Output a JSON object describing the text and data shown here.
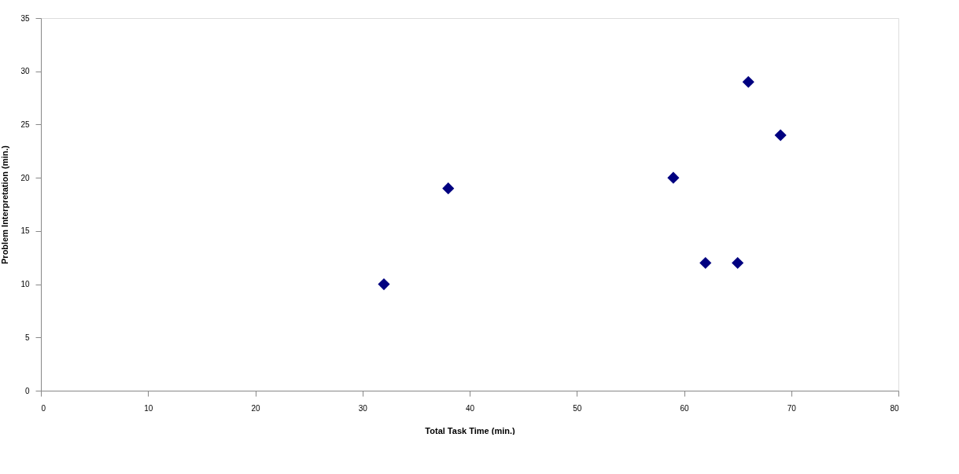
{
  "chart_data": {
    "type": "scatter",
    "xlabel": "Total Task Time (min.)",
    "ylabel": "Problem Interpretation (min.)",
    "x": [
      32,
      38,
      59,
      62,
      65,
      66,
      69
    ],
    "series": [
      {
        "color": "#000080",
        "values": [
          10,
          19,
          20,
          12,
          12,
          29,
          24
        ]
      }
    ],
    "xlim": [
      0,
      80
    ],
    "xticks": [
      0,
      10,
      20,
      30,
      40,
      50,
      60,
      70,
      80
    ],
    "ylim": [
      0,
      35
    ],
    "yticks": [
      0,
      5,
      10,
      15,
      20,
      25,
      30,
      35
    ],
    "marker": "diamond",
    "grid": false,
    "legend": false
  }
}
